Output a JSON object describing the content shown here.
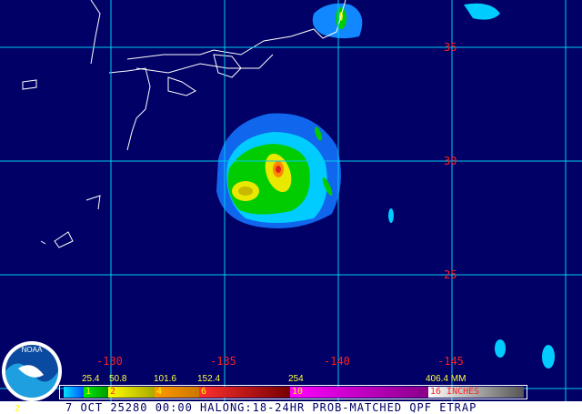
{
  "map": {
    "latitude_labels": [
      "35",
      "30",
      "25"
    ],
    "longitude_labels": [
      "-130",
      "-135",
      "-140",
      "-145"
    ]
  },
  "legend": {
    "mm_labels": [
      "25.4",
      "50.8",
      "101.6",
      "152.4",
      "254",
      "406.4 MM"
    ],
    "inch_labels": [
      "1",
      "2",
      "4",
      "6",
      "10",
      "16 INCHES"
    ],
    "colors": [
      "#00ccff",
      "#00cc00",
      "#e8e800",
      "#ff9900",
      "#dd2222",
      "#ee00ee",
      "#ffffff"
    ]
  },
  "footer": {
    "frame_number": "2",
    "caption": "7 OCT 25280 00:00 HALONG:18-24HR PROB-MATCHED QPF ETRAP"
  },
  "logo": {
    "text": "NOAA"
  }
}
